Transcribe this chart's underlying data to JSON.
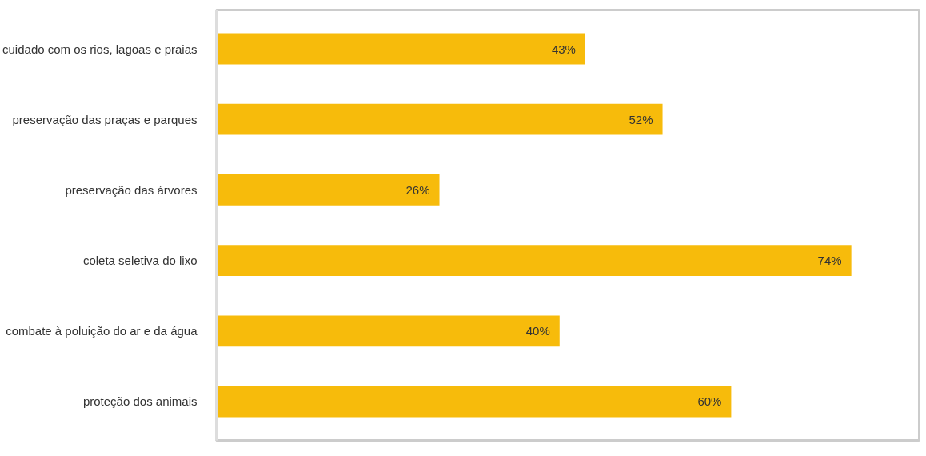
{
  "chart_data": {
    "type": "bar",
    "orientation": "horizontal",
    "categories": [
      "cuidado com os rios, lagoas e praias",
      "preservação das praças e parques",
      "preservação das árvores",
      "coleta seletiva do lixo",
      "combate à poluição do ar e da água",
      "proteção dos animais"
    ],
    "values": [
      43,
      52,
      26,
      74,
      40,
      60
    ],
    "value_labels": [
      "43%",
      "52%",
      "26%",
      "74%",
      "40%",
      "60%"
    ],
    "color": "#f7bb0b",
    "xlim": [
      0,
      82
    ],
    "tick_labels": "y",
    "grid": false
  }
}
